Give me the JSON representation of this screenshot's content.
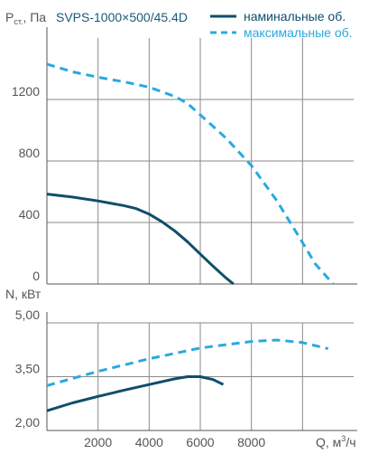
{
  "model": "SVPS-1000×500/45.4D",
  "colors": {
    "nominal": "#0f4e6b",
    "max": "#29a9e0"
  },
  "chart_data": [
    {
      "type": "line",
      "ylabel": {
        "main": "P",
        "sub": "ст.",
        "tail": ", Па"
      },
      "xlim": [
        0,
        12000
      ],
      "ylim": [
        0,
        1600
      ],
      "yticks": [
        0,
        400,
        800,
        1200
      ],
      "xgrid": [
        2000,
        4000,
        6000,
        8000,
        10000
      ],
      "legend": [
        {
          "label": "наминальные об.",
          "style": "solid",
          "series": "nominal"
        },
        {
          "label": "максимальные об.",
          "style": "dashed",
          "series": "max"
        }
      ],
      "series": [
        {
          "name": "наминальные об.",
          "key": "nominal",
          "style": "solid",
          "x": [
            0,
            1000,
            2000,
            3000,
            3500,
            4000,
            4500,
            5000,
            5500,
            6000,
            6500,
            7000,
            7300
          ],
          "y": [
            585,
            565,
            540,
            510,
            490,
            455,
            405,
            345,
            275,
            195,
            115,
            40,
            0
          ]
        },
        {
          "name": "максимальные об.",
          "key": "max",
          "style": "dashed",
          "x": [
            0,
            1000,
            2000,
            3000,
            4000,
            5000,
            5500,
            6000,
            7000,
            8000,
            9000,
            10000,
            10500,
            11200
          ],
          "y": [
            1430,
            1380,
            1345,
            1315,
            1280,
            1220,
            1175,
            1100,
            950,
            770,
            540,
            270,
            130,
            0
          ]
        }
      ]
    },
    {
      "type": "line",
      "ylabel": "N, кВт",
      "xlabel": {
        "main": "Q",
        "unit": ", м",
        "sup": "3",
        "tail": "/ч"
      },
      "xlim": [
        0,
        12000
      ],
      "ylim": [
        2.0,
        5.0
      ],
      "yticks": [
        "2,00",
        "3,50",
        "5,00"
      ],
      "ytick_values": [
        2.0,
        3.5,
        5.0
      ],
      "xticks": [
        2000,
        4000,
        6000,
        8000
      ],
      "xgrid": [
        2000,
        4000,
        6000,
        8000,
        10000
      ],
      "series": [
        {
          "name": "наминальные об.",
          "key": "nominal",
          "style": "solid",
          "x": [
            0,
            1000,
            2000,
            3000,
            4000,
            5000,
            5500,
            6000,
            6500,
            6900
          ],
          "y": [
            2.55,
            2.77,
            2.95,
            3.12,
            3.28,
            3.44,
            3.5,
            3.5,
            3.42,
            3.28
          ]
        },
        {
          "name": "максимальные об.",
          "key": "max",
          "style": "dashed",
          "x": [
            0,
            2000,
            4000,
            6000,
            8000,
            9000,
            10000,
            11000,
            11000
          ],
          "y": [
            3.25,
            3.65,
            4.0,
            4.3,
            4.48,
            4.52,
            4.45,
            4.28,
            4.28
          ]
        }
      ]
    }
  ]
}
